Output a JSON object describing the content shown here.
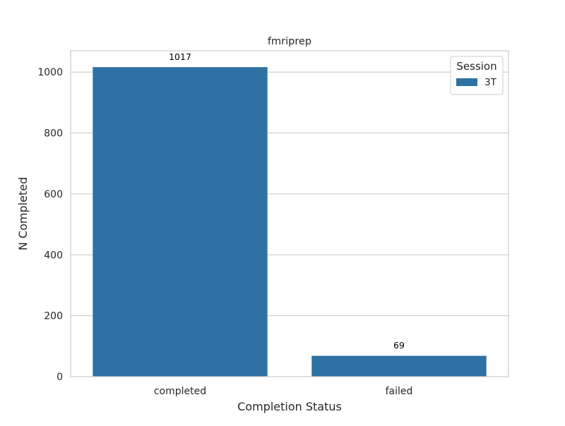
{
  "chart_data": {
    "type": "bar",
    "title": "fmriprep",
    "xlabel": "Completion Status",
    "ylabel": "N Completed",
    "categories": [
      "completed",
      "failed"
    ],
    "series": [
      {
        "name": "3T",
        "values": [
          1017,
          69
        ],
        "color": "#2e72a3"
      }
    ],
    "data_labels": [
      "1017",
      "69"
    ],
    "ylim": [
      0,
      1070
    ],
    "yticks": [
      0,
      200,
      400,
      600,
      800,
      1000
    ],
    "ytick_labels": [
      "0",
      "200",
      "400",
      "600",
      "800",
      "1000"
    ],
    "grid": true,
    "legend": {
      "title": "Session",
      "placement": "top-right"
    }
  }
}
